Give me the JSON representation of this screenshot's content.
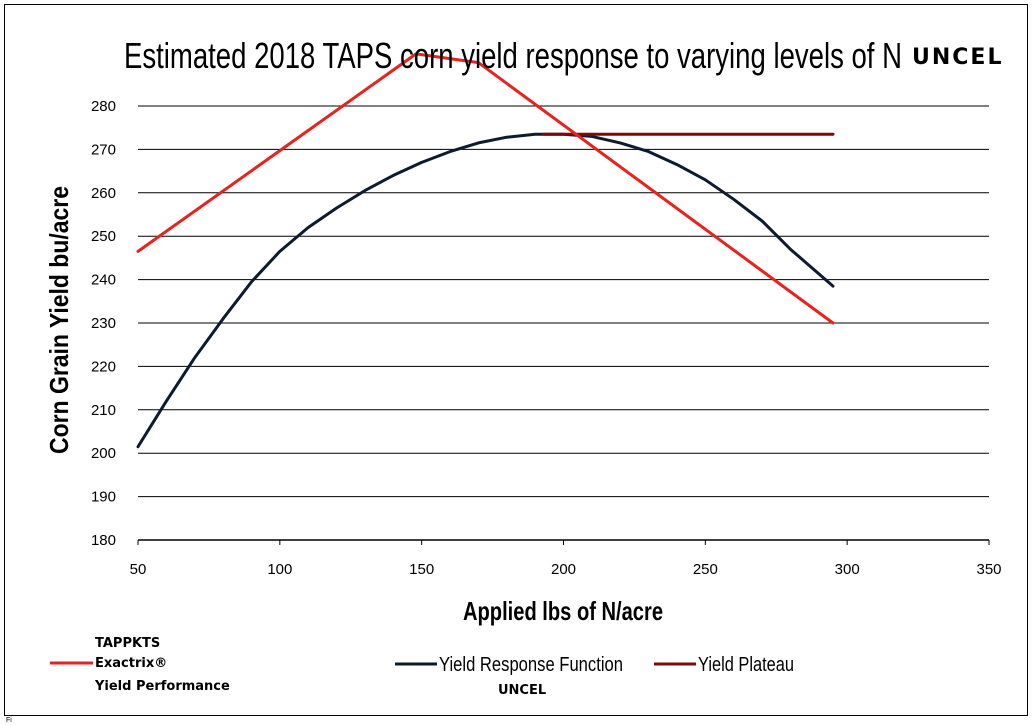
{
  "chart_data": {
    "type": "line",
    "title": "Estimated 2018 TAPS corn yield response to varying levels of N",
    "title_suffix": "UNCEL",
    "xlabel": "Applied lbs of N/acre",
    "ylabel": "Corn Grain Yield bu/acre",
    "xlim": [
      50,
      350
    ],
    "ylim": [
      180,
      280
    ],
    "xticks": [
      50,
      100,
      150,
      200,
      250,
      300,
      350
    ],
    "yticks": [
      180,
      190,
      200,
      210,
      220,
      230,
      240,
      250,
      260,
      270,
      280
    ],
    "grid": "horizontal",
    "legend_position": "bottom",
    "footnote": "Fi",
    "series": [
      {
        "key": "exactrix",
        "legend_lines": [
          "TAPPKTS",
          "Exactrix®",
          "Yield Performance"
        ],
        "color": "#e8221c",
        "x": [
          50,
          148,
          170,
          295
        ],
        "y": [
          246.5,
          292,
          290,
          230
        ]
      },
      {
        "key": "response",
        "name": "Yield Response Function",
        "sublabel": "UNCEL",
        "color": "#0d1b2e",
        "x": [
          50,
          60,
          70,
          80,
          90,
          100,
          110,
          120,
          130,
          140,
          150,
          160,
          170,
          180,
          190,
          200,
          210,
          220,
          230,
          240,
          250,
          260,
          270,
          280,
          295
        ],
        "y": [
          201.5,
          212,
          222,
          231,
          239.5,
          246.5,
          252,
          256.5,
          260.5,
          264,
          267,
          269.5,
          271.5,
          272.8,
          273.5,
          273.5,
          273,
          271.5,
          269.5,
          266.5,
          263,
          258.5,
          253.5,
          247,
          238.5
        ]
      },
      {
        "key": "plateau",
        "name": "Yield Plateau",
        "color": "#7a0a0a",
        "x": [
          193,
          295
        ],
        "y": [
          273.5,
          273.5
        ]
      }
    ]
  }
}
